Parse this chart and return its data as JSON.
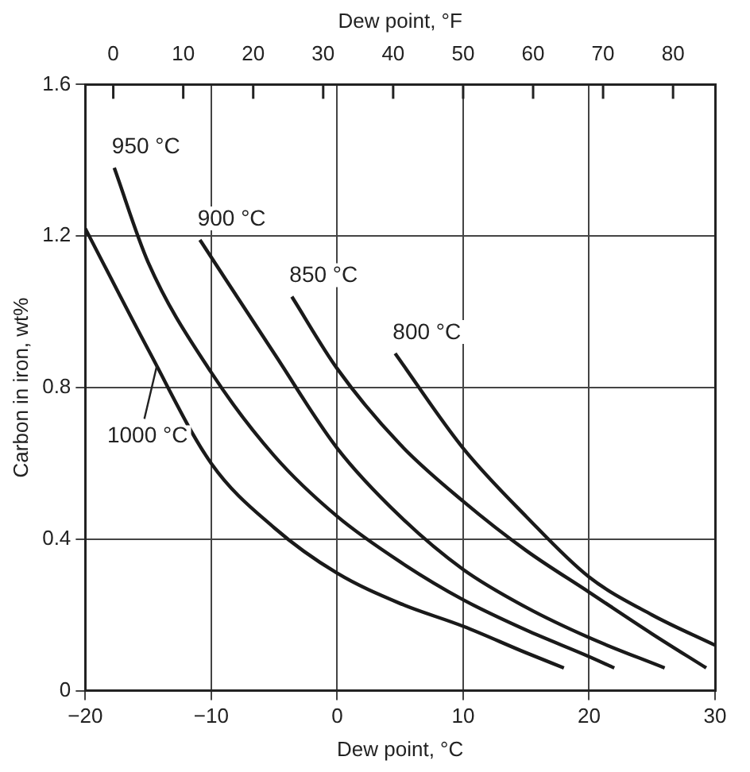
{
  "chart_data": {
    "type": "line",
    "xlabel": "Dew point, °C",
    "x2label": "Dew point, °F",
    "ylabel": "Carbon in iron, wt%",
    "xlim": [
      -20,
      30
    ],
    "xticks": [
      -20,
      -10,
      0,
      10,
      20,
      30
    ],
    "x2lim": [
      -4,
      86
    ],
    "x2ticks": [
      0,
      10,
      20,
      30,
      40,
      50,
      60,
      70,
      80
    ],
    "ylim": [
      0,
      1.6
    ],
    "yticks": [
      0,
      0.4,
      0.8,
      1.2,
      1.6
    ],
    "grid": true,
    "legend": false,
    "marker": "none",
    "line_style": "solid",
    "series": [
      {
        "color": "#1a1a1a",
        "x": [
          -20,
          -15,
          -10,
          -5,
          0,
          5,
          10,
          15,
          18
        ],
        "values": [
          1.22,
          0.9,
          0.6,
          0.43,
          0.31,
          0.23,
          0.17,
          0.1,
          0.06
        ]
      },
      {
        "color": "#1a1a1a",
        "x": [
          -17.7,
          -15,
          -10,
          -5,
          0,
          5,
          10,
          15,
          20,
          22
        ],
        "values": [
          1.38,
          1.13,
          0.84,
          0.62,
          0.46,
          0.34,
          0.24,
          0.16,
          0.09,
          0.06
        ]
      },
      {
        "color": "#1a1a1a",
        "x": [
          -10.9,
          -5,
          0,
          5,
          10,
          15,
          20,
          26
        ],
        "values": [
          1.19,
          0.89,
          0.64,
          0.46,
          0.32,
          0.22,
          0.14,
          0.06
        ]
      },
      {
        "color": "#1a1a1a",
        "x": [
          -3.6,
          0,
          5,
          10,
          15,
          20,
          25,
          29.3
        ],
        "values": [
          1.04,
          0.85,
          0.65,
          0.5,
          0.37,
          0.26,
          0.15,
          0.06
        ]
      },
      {
        "color": "#1a1a1a",
        "x": [
          4.6,
          10,
          15,
          20,
          25,
          30
        ],
        "values": [
          0.89,
          0.64,
          0.46,
          0.3,
          0.2,
          0.12
        ]
      }
    ],
    "annotations": [
      {
        "text": "950 °C",
        "x": -17.7,
        "y": 1.38
      },
      {
        "text": "900 °C",
        "x": -10.9,
        "y": 1.19
      },
      {
        "text": "850 °C",
        "x": -3.6,
        "y": 1.04
      },
      {
        "text": "800 °C",
        "x": 4.6,
        "y": 0.89
      },
      {
        "text": "1000 °C",
        "x": -14.3,
        "y": 0.86
      }
    ]
  }
}
